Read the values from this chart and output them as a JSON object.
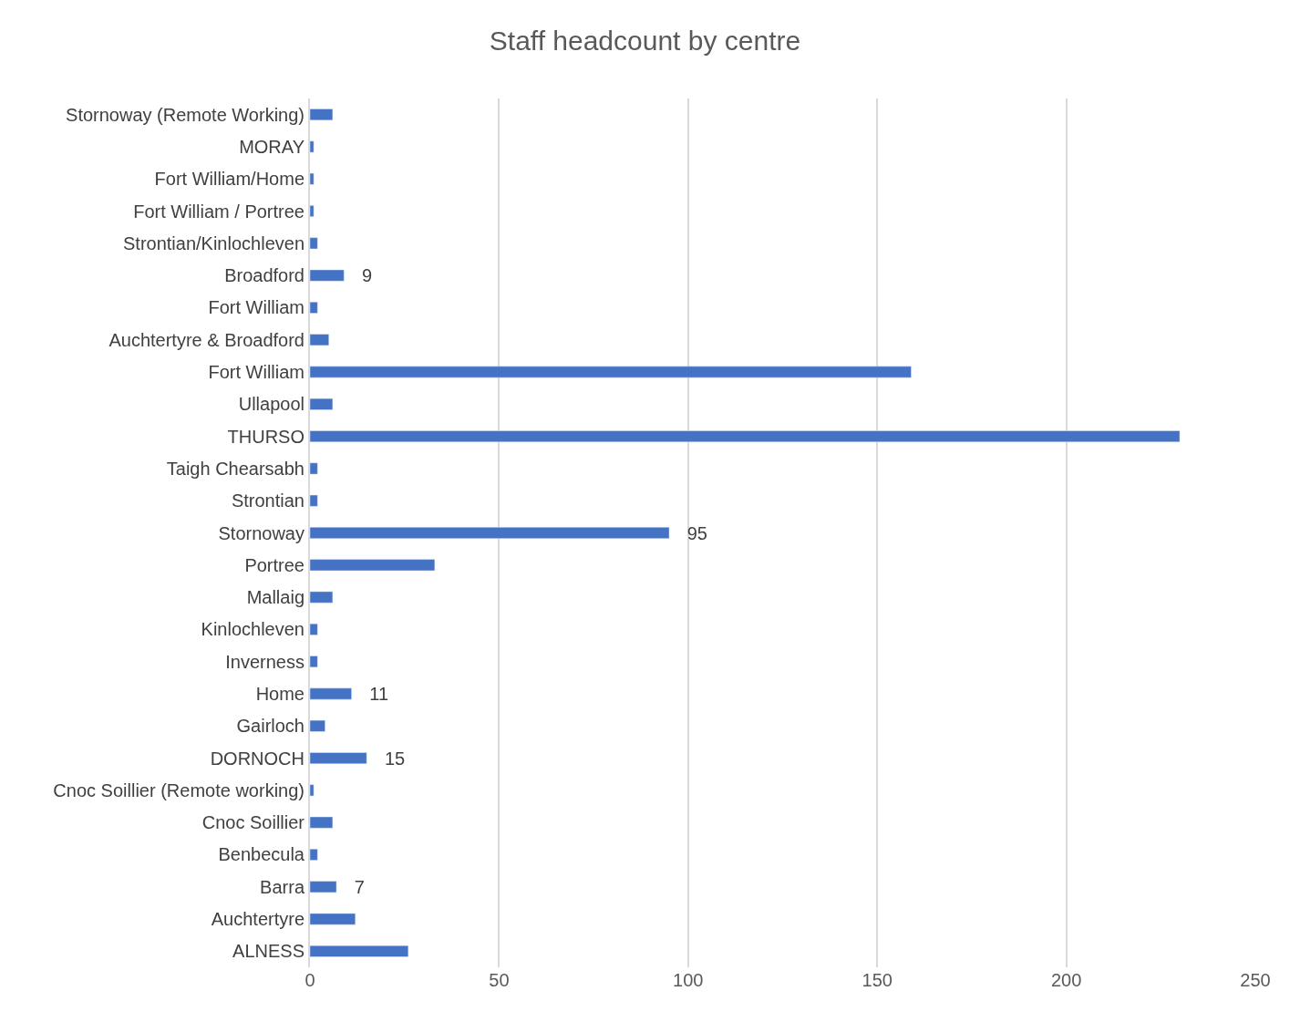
{
  "chart_data": {
    "type": "bar",
    "orientation": "horizontal",
    "title": "Staff headcount by centre",
    "categories": [
      "Stornoway (Remote Working)",
      "MORAY",
      "Fort William/Home",
      "Fort William / Portree",
      "Strontian/Kinlochleven",
      "Broadford",
      "Fort William",
      "Auchtertyre & Broadford",
      "Fort William",
      "Ullapool",
      "THURSO",
      "Taigh Chearsabh",
      "Strontian",
      "Stornoway",
      "Portree",
      "Mallaig",
      "Kinlochleven",
      "Inverness",
      "Home",
      "Gairloch",
      "DORNOCH",
      "Cnoc Soillier (Remote working)",
      "Cnoc Soillier",
      "Benbecula",
      "Barra",
      "Auchtertyre",
      "ALNESS"
    ],
    "values": [
      6,
      1,
      1,
      1,
      2,
      9,
      2,
      5,
      159,
      6,
      230,
      2,
      2,
      95,
      33,
      6,
      2,
      2,
      11,
      4,
      15,
      1,
      6,
      2,
      7,
      12,
      26
    ],
    "value_labels": [
      null,
      null,
      null,
      null,
      null,
      "9",
      null,
      null,
      null,
      null,
      null,
      null,
      null,
      "95",
      null,
      null,
      null,
      null,
      "11",
      null,
      "15",
      null,
      null,
      null,
      "7",
      null,
      null
    ],
    "color": "#4472c4",
    "xlim": [
      0,
      250
    ],
    "xticks": [
      0,
      50,
      100,
      150,
      200,
      250
    ],
    "grid": "x",
    "legend": false
  }
}
